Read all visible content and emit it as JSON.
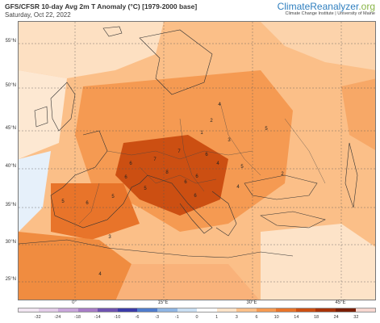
{
  "header": {
    "title": "GFS/CFSR 10-day Avg 2m T Anomaly (°C) [1979-2000 base]",
    "date": "Saturday, Oct 22, 2022"
  },
  "brand": {
    "name": "ClimateReanalyzer",
    "tld": ".org",
    "subtitle": "Climate Change Institute | University of Maine"
  },
  "map": {
    "lat_labels": [
      "55°N",
      "50°N",
      "45°N",
      "40°N",
      "35°N",
      "30°N",
      "25°N"
    ],
    "lon_labels": [
      "0°",
      "15°E",
      "30°E",
      "45°E"
    ],
    "value_labels": [
      {
        "text": "7"
      },
      {
        "text": "6"
      },
      {
        "text": "5"
      },
      {
        "text": "7"
      },
      {
        "text": "6"
      },
      {
        "text": "8"
      },
      {
        "text": "6"
      },
      {
        "text": "6"
      },
      {
        "text": "4"
      },
      {
        "text": "5"
      },
      {
        "text": "6"
      },
      {
        "text": "5"
      },
      {
        "text": "6"
      },
      {
        "text": "3"
      },
      {
        "text": "2"
      },
      {
        "text": "4"
      },
      {
        "text": "5"
      },
      {
        "text": "2"
      },
      {
        "text": "1"
      },
      {
        "text": "3"
      },
      {
        "text": "4"
      },
      {
        "text": "5"
      },
      {
        "text": "6"
      },
      {
        "text": "4"
      }
    ]
  },
  "colorbar": {
    "labels": [
      "-32",
      "-24",
      "-18",
      "-14",
      "-10",
      "-6",
      "-3",
      "-1",
      "0",
      "1",
      "3",
      "6",
      "10",
      "14",
      "18",
      "24",
      "32"
    ],
    "colors": [
      "#f2e6f2",
      "#e3cce8",
      "#c9a6da",
      "#a77cc6",
      "#6e52b0",
      "#3a3aa8",
      "#4f7ccc",
      "#8fb5e3",
      "#c9def2",
      "#ffffff",
      "#fde3c8",
      "#fbc08a",
      "#f59a52",
      "#e8742a",
      "#cc4f12",
      "#a83309",
      "#7a1e05",
      "#f7d7d0"
    ]
  }
}
